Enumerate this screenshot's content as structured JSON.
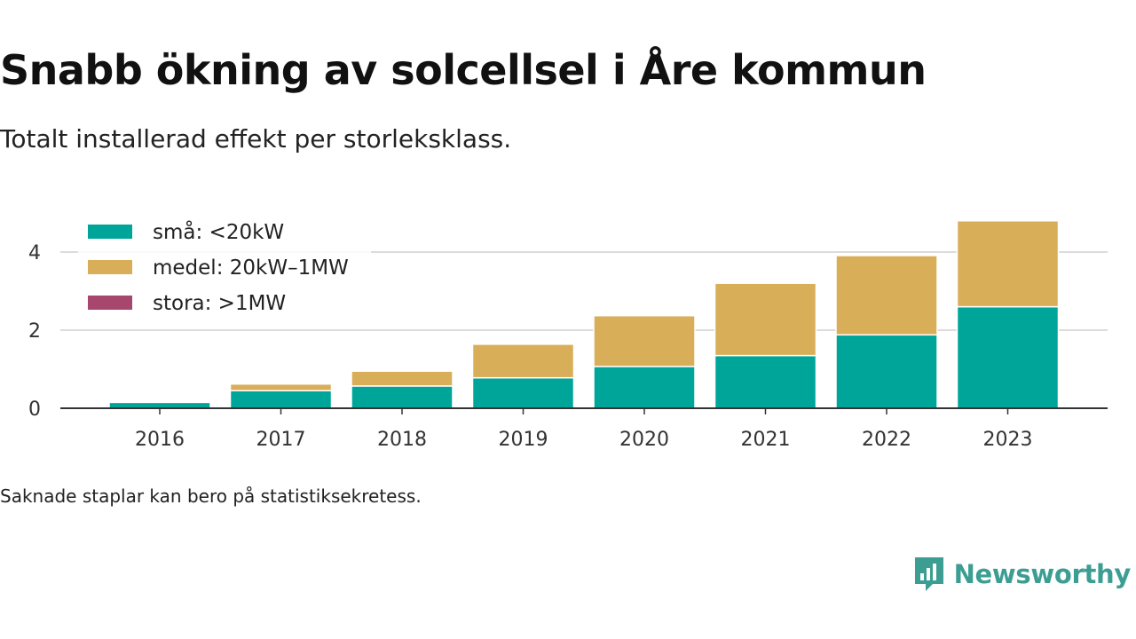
{
  "title": "Snabb ökning av solcellsel i Åre kommun",
  "subtitle": "Totalt installerad effekt per storleksklass.",
  "footnote": "Saknade staplar kan bero på statistiksekretess.",
  "brand": {
    "name": "Newsworthy",
    "icon": "newsworthy-logo-icon",
    "color": "#3c9e93"
  },
  "chart_data": {
    "type": "bar",
    "stacked": true,
    "categories": [
      "2016",
      "2017",
      "2018",
      "2019",
      "2020",
      "2021",
      "2022",
      "2023"
    ],
    "series": [
      {
        "name": "små: <20kW",
        "color": "#00a59a",
        "values": [
          0.15,
          0.45,
          0.57,
          0.78,
          1.07,
          1.35,
          1.88,
          2.6
        ]
      },
      {
        "name": "medel: 20kW–1MW",
        "color": "#d9ae59",
        "values": [
          0,
          0.17,
          0.38,
          0.86,
          1.3,
          1.85,
          2.03,
          2.2
        ]
      },
      {
        "name": "stora: >1MW",
        "color": "#a8476e",
        "values": [
          0,
          0,
          0,
          0,
          0,
          0,
          0,
          0
        ]
      }
    ],
    "yticks": [
      0,
      2,
      4
    ],
    "ylim": [
      0,
      5
    ],
    "grid": true,
    "legend": "top-left",
    "xlabel": "",
    "ylabel": ""
  }
}
